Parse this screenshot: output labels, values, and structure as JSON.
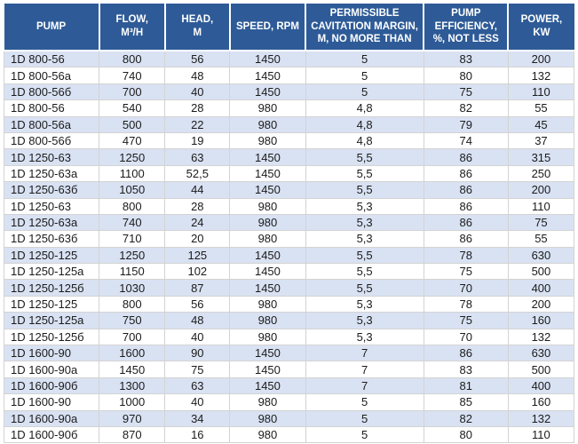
{
  "table": {
    "columns": [
      {
        "label": "PUMP"
      },
      {
        "label": "FLOW,\nM³/H"
      },
      {
        "label": "HEAD,\nM"
      },
      {
        "label": "SPEED, RPM"
      },
      {
        "label": "PERMISSIBLE\nCAVITATION MARGIN,\nM, NO MORE THAN"
      },
      {
        "label": "PUMP\nEFFICIENCY,\n%, NOT LESS"
      },
      {
        "label": "POWER,\nKW"
      }
    ],
    "rows": [
      [
        "1D 800-56",
        "800",
        "56",
        "1450",
        "5",
        "83",
        "200"
      ],
      [
        "1D 800-56а",
        "740",
        "48",
        "1450",
        "5",
        "80",
        "132"
      ],
      [
        "1D 800-56б",
        "700",
        "40",
        "1450",
        "5",
        "75",
        "110"
      ],
      [
        "1D 800-56",
        "540",
        "28",
        "980",
        "4,8",
        "82",
        "55"
      ],
      [
        "1D 800-56а",
        "500",
        "22",
        "980",
        "4,8",
        "79",
        "45"
      ],
      [
        "1D 800-56б",
        "470",
        "19",
        "980",
        "4,8",
        "74",
        "37"
      ],
      [
        "1D 1250-63",
        "1250",
        "63",
        "1450",
        "5,5",
        "86",
        "315"
      ],
      [
        "1D 1250-63а",
        "1100",
        "52,5",
        "1450",
        "5,5",
        "86",
        "250"
      ],
      [
        "1D 1250-63б",
        "1050",
        "44",
        "1450",
        "5,5",
        "86",
        "200"
      ],
      [
        "1D 1250-63",
        "800",
        "28",
        "980",
        "5,3",
        "86",
        "110"
      ],
      [
        "1D 1250-63а",
        "740",
        "24",
        "980",
        "5,3",
        "86",
        "75"
      ],
      [
        "1D 1250-63б",
        "710",
        "20",
        "980",
        "5,3",
        "86",
        "55"
      ],
      [
        "1D 1250-125",
        "1250",
        "125",
        "1450",
        "5,5",
        "78",
        "630"
      ],
      [
        "1D 1250-125а",
        "1150",
        "102",
        "1450",
        "5,5",
        "75",
        "500"
      ],
      [
        "1D 1250-125б",
        "1030",
        "87",
        "1450",
        "5,5",
        "70",
        "400"
      ],
      [
        "1D 1250-125",
        "800",
        "56",
        "980",
        "5,3",
        "78",
        "200"
      ],
      [
        "1D 1250-125а",
        "750",
        "48",
        "980",
        "5,3",
        "75",
        "160"
      ],
      [
        "1D 1250-125б",
        "700",
        "40",
        "980",
        "5,3",
        "70",
        "132"
      ],
      [
        "1D 1600-90",
        "1600",
        "90",
        "1450",
        "7",
        "86",
        "630"
      ],
      [
        "1D 1600-90а",
        "1450",
        "75",
        "1450",
        "7",
        "83",
        "500"
      ],
      [
        "1D 1600-90б",
        "1300",
        "63",
        "1450",
        "7",
        "81",
        "400"
      ],
      [
        "1D 1600-90",
        "1000",
        "40",
        "980",
        "5",
        "85",
        "160"
      ],
      [
        "1D 1600-90а",
        "970",
        "34",
        "980",
        "5",
        "82",
        "132"
      ],
      [
        "1D 1600-90б",
        "870",
        "16",
        "980",
        "5",
        "80",
        "110"
      ]
    ]
  },
  "colors": {
    "header_bg": "#2E5B97",
    "header_text": "#FFFFFF",
    "row_alt_bg": "#D9E2F3",
    "row_bg": "#FFFFFF",
    "grid_line": "#D3D3D3",
    "body_text": "#1B1B1B"
  }
}
